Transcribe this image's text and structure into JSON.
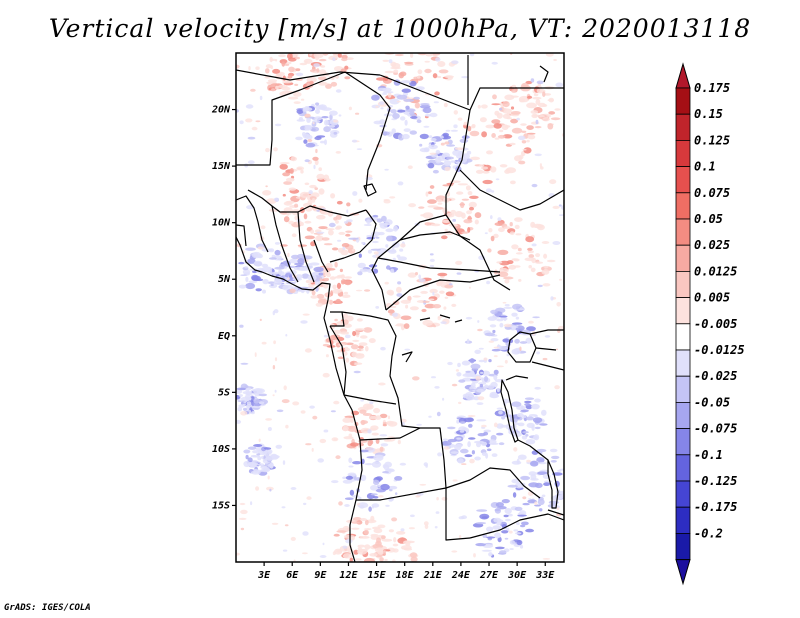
{
  "title": "Vertical velocity [m/s] at 1000hPa, VT: 2020013118",
  "credit": "GrADS: IGES/COLA",
  "map": {
    "lat_range": [
      -20,
      25
    ],
    "lon_range": [
      0,
      35
    ],
    "lat_ticks": [
      {
        "value": 20,
        "label": "20N"
      },
      {
        "value": 15,
        "label": "15N"
      },
      {
        "value": 10,
        "label": "10N"
      },
      {
        "value": 5,
        "label": "5N"
      },
      {
        "value": 0,
        "label": "EQ"
      },
      {
        "value": -5,
        "label": "5S"
      },
      {
        "value": -10,
        "label": "10S"
      },
      {
        "value": -15,
        "label": "15S"
      }
    ],
    "lon_ticks": [
      {
        "value": 3,
        "label": "3E"
      },
      {
        "value": 6,
        "label": "6E"
      },
      {
        "value": 9,
        "label": "9E"
      },
      {
        "value": 12,
        "label": "12E"
      },
      {
        "value": 15,
        "label": "15E"
      },
      {
        "value": 18,
        "label": "18E"
      },
      {
        "value": 21,
        "label": "21E"
      },
      {
        "value": 24,
        "label": "24E"
      },
      {
        "value": 27,
        "label": "27E"
      },
      {
        "value": 30,
        "label": "30E"
      },
      {
        "value": 33,
        "label": "33E"
      }
    ]
  },
  "colorbar": {
    "levels": [
      {
        "label": "0.175",
        "color": "#a50f15"
      },
      {
        "label": "0.15",
        "color": "#c0242b"
      },
      {
        "label": "0.125",
        "color": "#d7393c"
      },
      {
        "label": "0.1",
        "color": "#e6504e"
      },
      {
        "label": "0.075",
        "color": "#ef6e64"
      },
      {
        "label": "0.05",
        "color": "#f38c82"
      },
      {
        "label": "0.025",
        "color": "#f7aaa2"
      },
      {
        "label": "0.0125",
        "color": "#fac7c1"
      },
      {
        "label": "0.005",
        "color": "#fde2de"
      },
      {
        "label": "-0.005",
        "color": "#ffffff"
      },
      {
        "label": "-0.0125",
        "color": "#e0e0fb"
      },
      {
        "label": "-0.025",
        "color": "#c4c4f6"
      },
      {
        "label": "-0.05",
        "color": "#a6a6f0"
      },
      {
        "label": "-0.075",
        "color": "#8585e8"
      },
      {
        "label": "-0.1",
        "color": "#6464df"
      },
      {
        "label": "-0.125",
        "color": "#4545d4"
      },
      {
        "label": "-0.175",
        "color": "#2d2dc2"
      },
      {
        "label": "-0.2",
        "color": "#1a1aa8"
      }
    ],
    "top_color": "#b2182b",
    "bottom_color": "#1c0f9e"
  }
}
